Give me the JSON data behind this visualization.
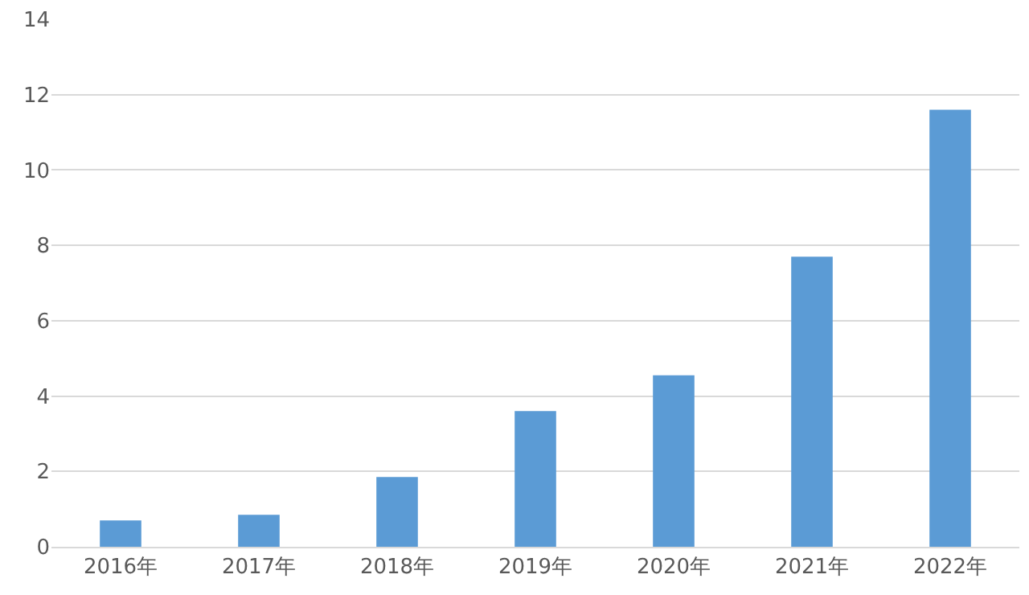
{
  "chart_data": {
    "type": "bar",
    "categories": [
      "2016年",
      "2017年",
      "2018年",
      "2019年",
      "2020年",
      "2021年",
      "2022年"
    ],
    "values": [
      0.7,
      0.85,
      1.85,
      3.6,
      4.55,
      7.7,
      11.6
    ],
    "color": "#5b9bd5",
    "ylim": [
      0,
      14
    ],
    "yticks": [
      0,
      2,
      4,
      6,
      8,
      10,
      12,
      14
    ],
    "grid": "y"
  }
}
